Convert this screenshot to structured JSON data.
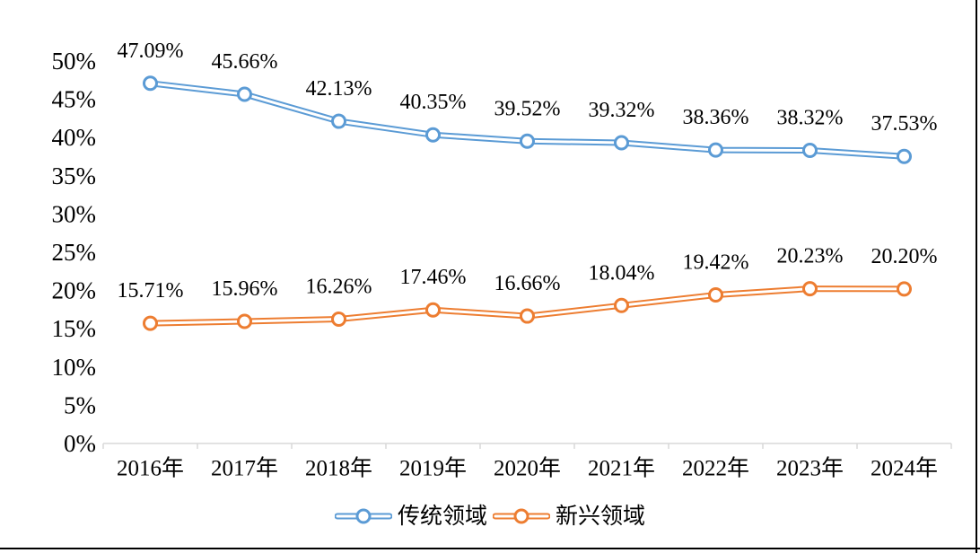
{
  "chart_data": {
    "type": "line",
    "title": "",
    "categories": [
      "2016年",
      "2017年",
      "2018年",
      "2019年",
      "2020年",
      "2021年",
      "2022年",
      "2023年",
      "2024年"
    ],
    "series": [
      {
        "name": "传统领域",
        "color": "#5B9BD5",
        "values": [
          47.09,
          45.66,
          42.13,
          40.35,
          39.52,
          39.32,
          38.36,
          38.32,
          37.53
        ],
        "point_labels": [
          "47.09%",
          "45.66%",
          "42.13%",
          "40.35%",
          "39.52%",
          "39.32%",
          "38.36%",
          "38.32%",
          "37.53%"
        ]
      },
      {
        "name": "新兴领域",
        "color": "#ED7D31",
        "values": [
          15.71,
          15.96,
          16.26,
          17.46,
          16.66,
          18.04,
          19.42,
          20.23,
          20.2
        ],
        "point_labels": [
          "15.71%",
          "15.96%",
          "16.26%",
          "17.46%",
          "16.66%",
          "18.04%",
          "19.42%",
          "20.23%",
          "20.20%"
        ]
      }
    ],
    "y_axis": {
      "min": 0,
      "max": 50,
      "step": 5,
      "tick_labels": [
        "0%",
        "5%",
        "10%",
        "15%",
        "20%",
        "25%",
        "30%",
        "35%",
        "40%",
        "45%",
        "50%"
      ]
    },
    "x_axis": {
      "tick_labels": [
        "2016年",
        "2017年",
        "2018年",
        "2019年",
        "2020年",
        "2021年",
        "2022年",
        "2023年",
        "2024年"
      ]
    },
    "legend": {
      "position": "bottom",
      "entries": [
        "传统领域",
        "新兴领域"
      ]
    },
    "style": {
      "grid": false,
      "marker": "open-circle-icon",
      "line_style": "double-outline",
      "axis_line_color": "#D9D9D9",
      "label_color": "#000000",
      "background_color": "#FFFFFF",
      "frame_border_color": "#000000"
    }
  }
}
